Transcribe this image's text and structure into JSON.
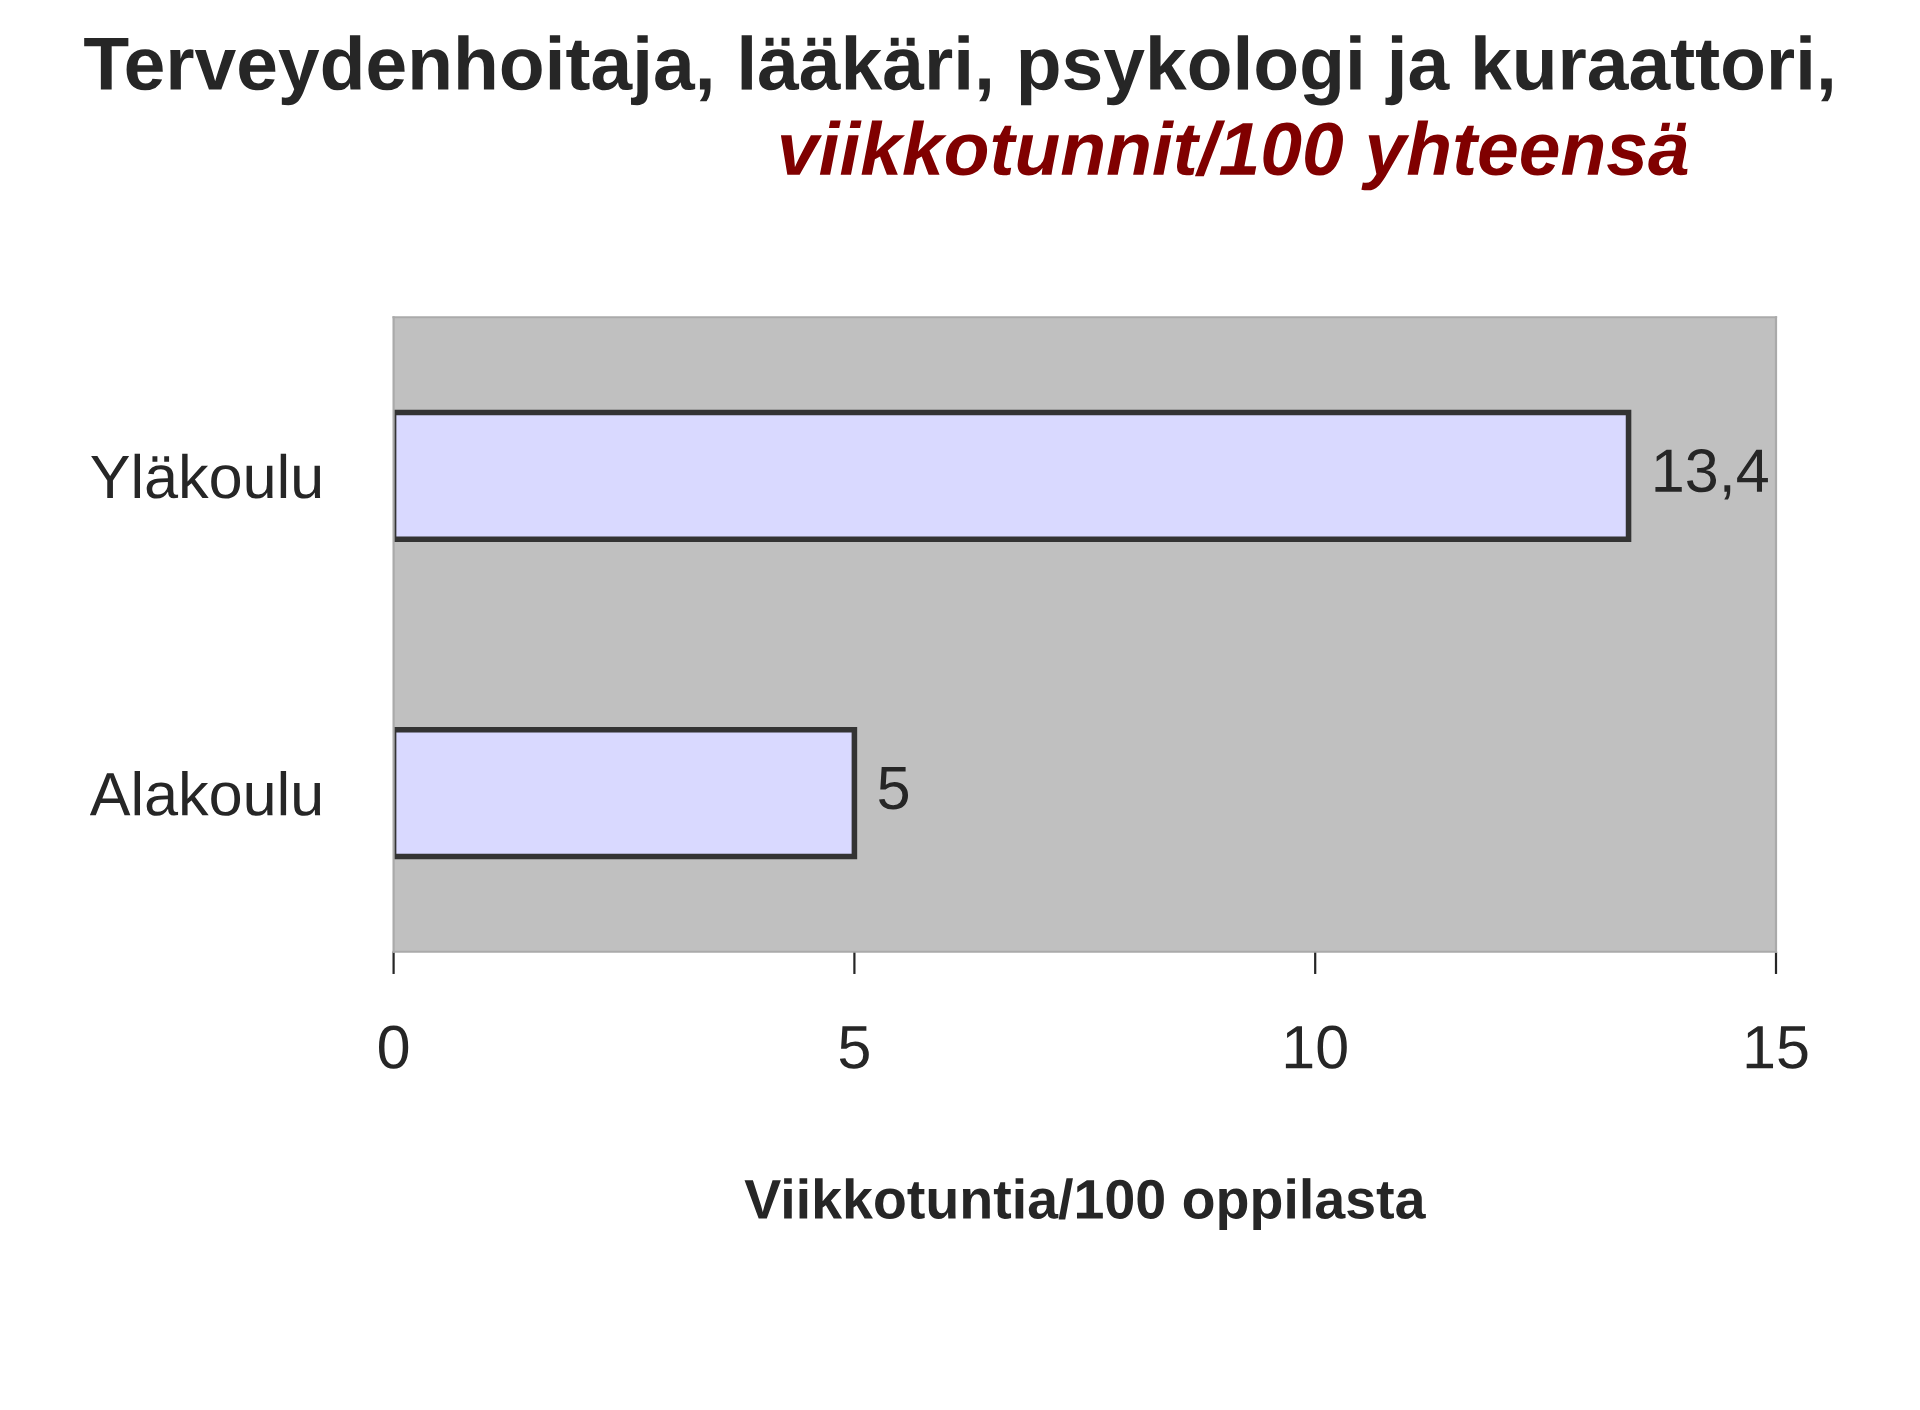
{
  "chart_data": {
    "type": "bar",
    "orientation": "horizontal",
    "title": "Terveydenhoitaja, lääkäri, psykologi ja kuraattori,",
    "subtitle": "viikkotunnit/100 yhteensä",
    "categories": [
      "Yläkoulu",
      "Alakoulu"
    ],
    "values": [
      13.4,
      5
    ],
    "value_labels": [
      "13,4",
      "5"
    ],
    "color": "#d9d9ff",
    "xlabel": "Viikkotuntia/100 oppilasta",
    "xlim": [
      0,
      15
    ],
    "xticks": [
      0,
      5,
      10,
      15
    ],
    "grid": false,
    "legend": false
  }
}
